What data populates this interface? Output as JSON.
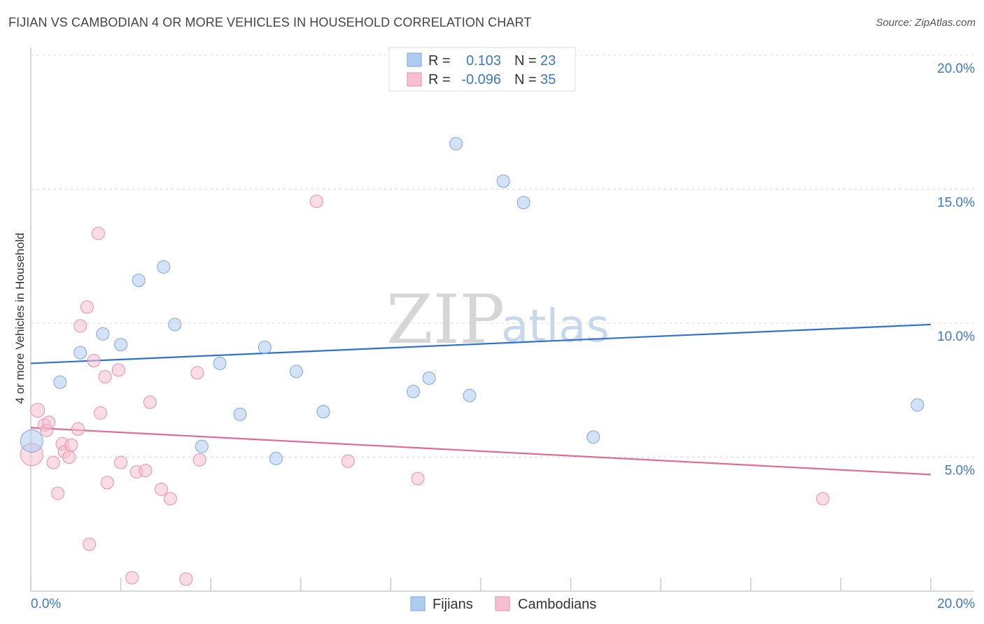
{
  "title": "FIJIAN VS CAMBODIAN 4 OR MORE VEHICLES IN HOUSEHOLD CORRELATION CHART",
  "source": "Source: ZipAtlas.com",
  "colors": {
    "fijian_fill": "#aecbf0",
    "fijian_stroke": "#7aa7dd",
    "fijian_line": "#2f72cc",
    "cambodian_fill": "#f6c0d0",
    "cambodian_stroke": "#e98fab",
    "cambodian_line": "#e06a96",
    "tick": "#3a78c9"
  },
  "legend": {
    "rows": [
      {
        "r_label": "R =",
        "r_value": "0.103",
        "n_label": "N =",
        "n_value": "23"
      },
      {
        "r_label": "R =",
        "r_value": "-0.096",
        "n_label": "N =",
        "n_value": "35"
      }
    ]
  },
  "bottom_legend": [
    "Fijians",
    "Cambodians"
  ],
  "watermark": {
    "zip": "ZIP",
    "atlas": "atlas"
  },
  "chart_data": {
    "type": "scatter",
    "title": "FIJIAN VS CAMBODIAN 4 OR MORE VEHICLES IN HOUSEHOLD CORRELATION CHART",
    "xlabel": "",
    "ylabel": "4 or more Vehicles in Household",
    "xlim": [
      0,
      20
    ],
    "ylim": [
      0,
      20
    ],
    "x_tick_labels": [
      "0.0%",
      "20.0%"
    ],
    "y_ticks": [
      5,
      10,
      15,
      20
    ],
    "y_tick_labels": [
      "5.0%",
      "10.0%",
      "15.0%",
      "20.0%"
    ],
    "grid": true,
    "legend_position": "top-center",
    "series": [
      {
        "name": "Fijians",
        "r": 0.103,
        "n": 23,
        "trend": [
          [
            0,
            8.5
          ],
          [
            20,
            9.95
          ]
        ],
        "points": [
          [
            0.02,
            5.6,
            16
          ],
          [
            0.65,
            7.8,
            9
          ],
          [
            1.1,
            8.9,
            9
          ],
          [
            1.6,
            9.6,
            9
          ],
          [
            2.0,
            9.2,
            9
          ],
          [
            2.4,
            11.6,
            9
          ],
          [
            2.95,
            12.1,
            9
          ],
          [
            3.2,
            9.95,
            9
          ],
          [
            3.8,
            5.4,
            9
          ],
          [
            4.2,
            8.5,
            9
          ],
          [
            4.65,
            6.6,
            9
          ],
          [
            5.45,
            4.95,
            9
          ],
          [
            5.2,
            9.1,
            9
          ],
          [
            5.9,
            8.2,
            9
          ],
          [
            6.5,
            6.7,
            9
          ],
          [
            8.5,
            7.45,
            9
          ],
          [
            8.85,
            7.95,
            9
          ],
          [
            9.45,
            16.7,
            9
          ],
          [
            9.75,
            7.3,
            9
          ],
          [
            10.5,
            15.3,
            9
          ],
          [
            10.95,
            14.5,
            9
          ],
          [
            12.5,
            5.75,
            9
          ],
          [
            19.7,
            6.95,
            9
          ]
        ]
      },
      {
        "name": "Cambodians",
        "r": -0.096,
        "n": 35,
        "trend": [
          [
            0,
            6.1
          ],
          [
            20,
            4.35
          ]
        ],
        "points": [
          [
            0.02,
            5.1,
            16
          ],
          [
            0.15,
            6.75,
            10
          ],
          [
            0.3,
            6.2,
            9
          ],
          [
            0.35,
            6.0,
            9
          ],
          [
            0.4,
            6.3,
            9
          ],
          [
            0.5,
            4.8,
            9
          ],
          [
            0.6,
            3.65,
            9
          ],
          [
            0.7,
            5.5,
            9
          ],
          [
            0.75,
            5.2,
            9
          ],
          [
            0.85,
            5.0,
            9
          ],
          [
            0.9,
            5.45,
            9
          ],
          [
            1.05,
            6.05,
            9
          ],
          [
            1.1,
            9.9,
            9
          ],
          [
            1.25,
            10.6,
            9
          ],
          [
            1.3,
            1.75,
            9
          ],
          [
            1.4,
            8.6,
            9
          ],
          [
            1.5,
            13.35,
            9
          ],
          [
            1.55,
            6.65,
            9
          ],
          [
            1.65,
            8.0,
            9
          ],
          [
            1.7,
            4.05,
            9
          ],
          [
            1.95,
            8.25,
            9
          ],
          [
            2.0,
            4.8,
            9
          ],
          [
            2.25,
            0.5,
            9
          ],
          [
            2.35,
            4.45,
            9
          ],
          [
            2.55,
            4.5,
            9
          ],
          [
            2.65,
            7.05,
            9
          ],
          [
            2.9,
            3.8,
            9
          ],
          [
            3.1,
            3.45,
            9
          ],
          [
            3.45,
            0.45,
            9
          ],
          [
            3.7,
            8.15,
            9
          ],
          [
            3.75,
            4.9,
            9
          ],
          [
            6.35,
            14.55,
            9
          ],
          [
            7.05,
            4.85,
            9
          ],
          [
            8.6,
            4.2,
            9
          ],
          [
            17.6,
            3.45,
            9
          ]
        ]
      }
    ]
  }
}
